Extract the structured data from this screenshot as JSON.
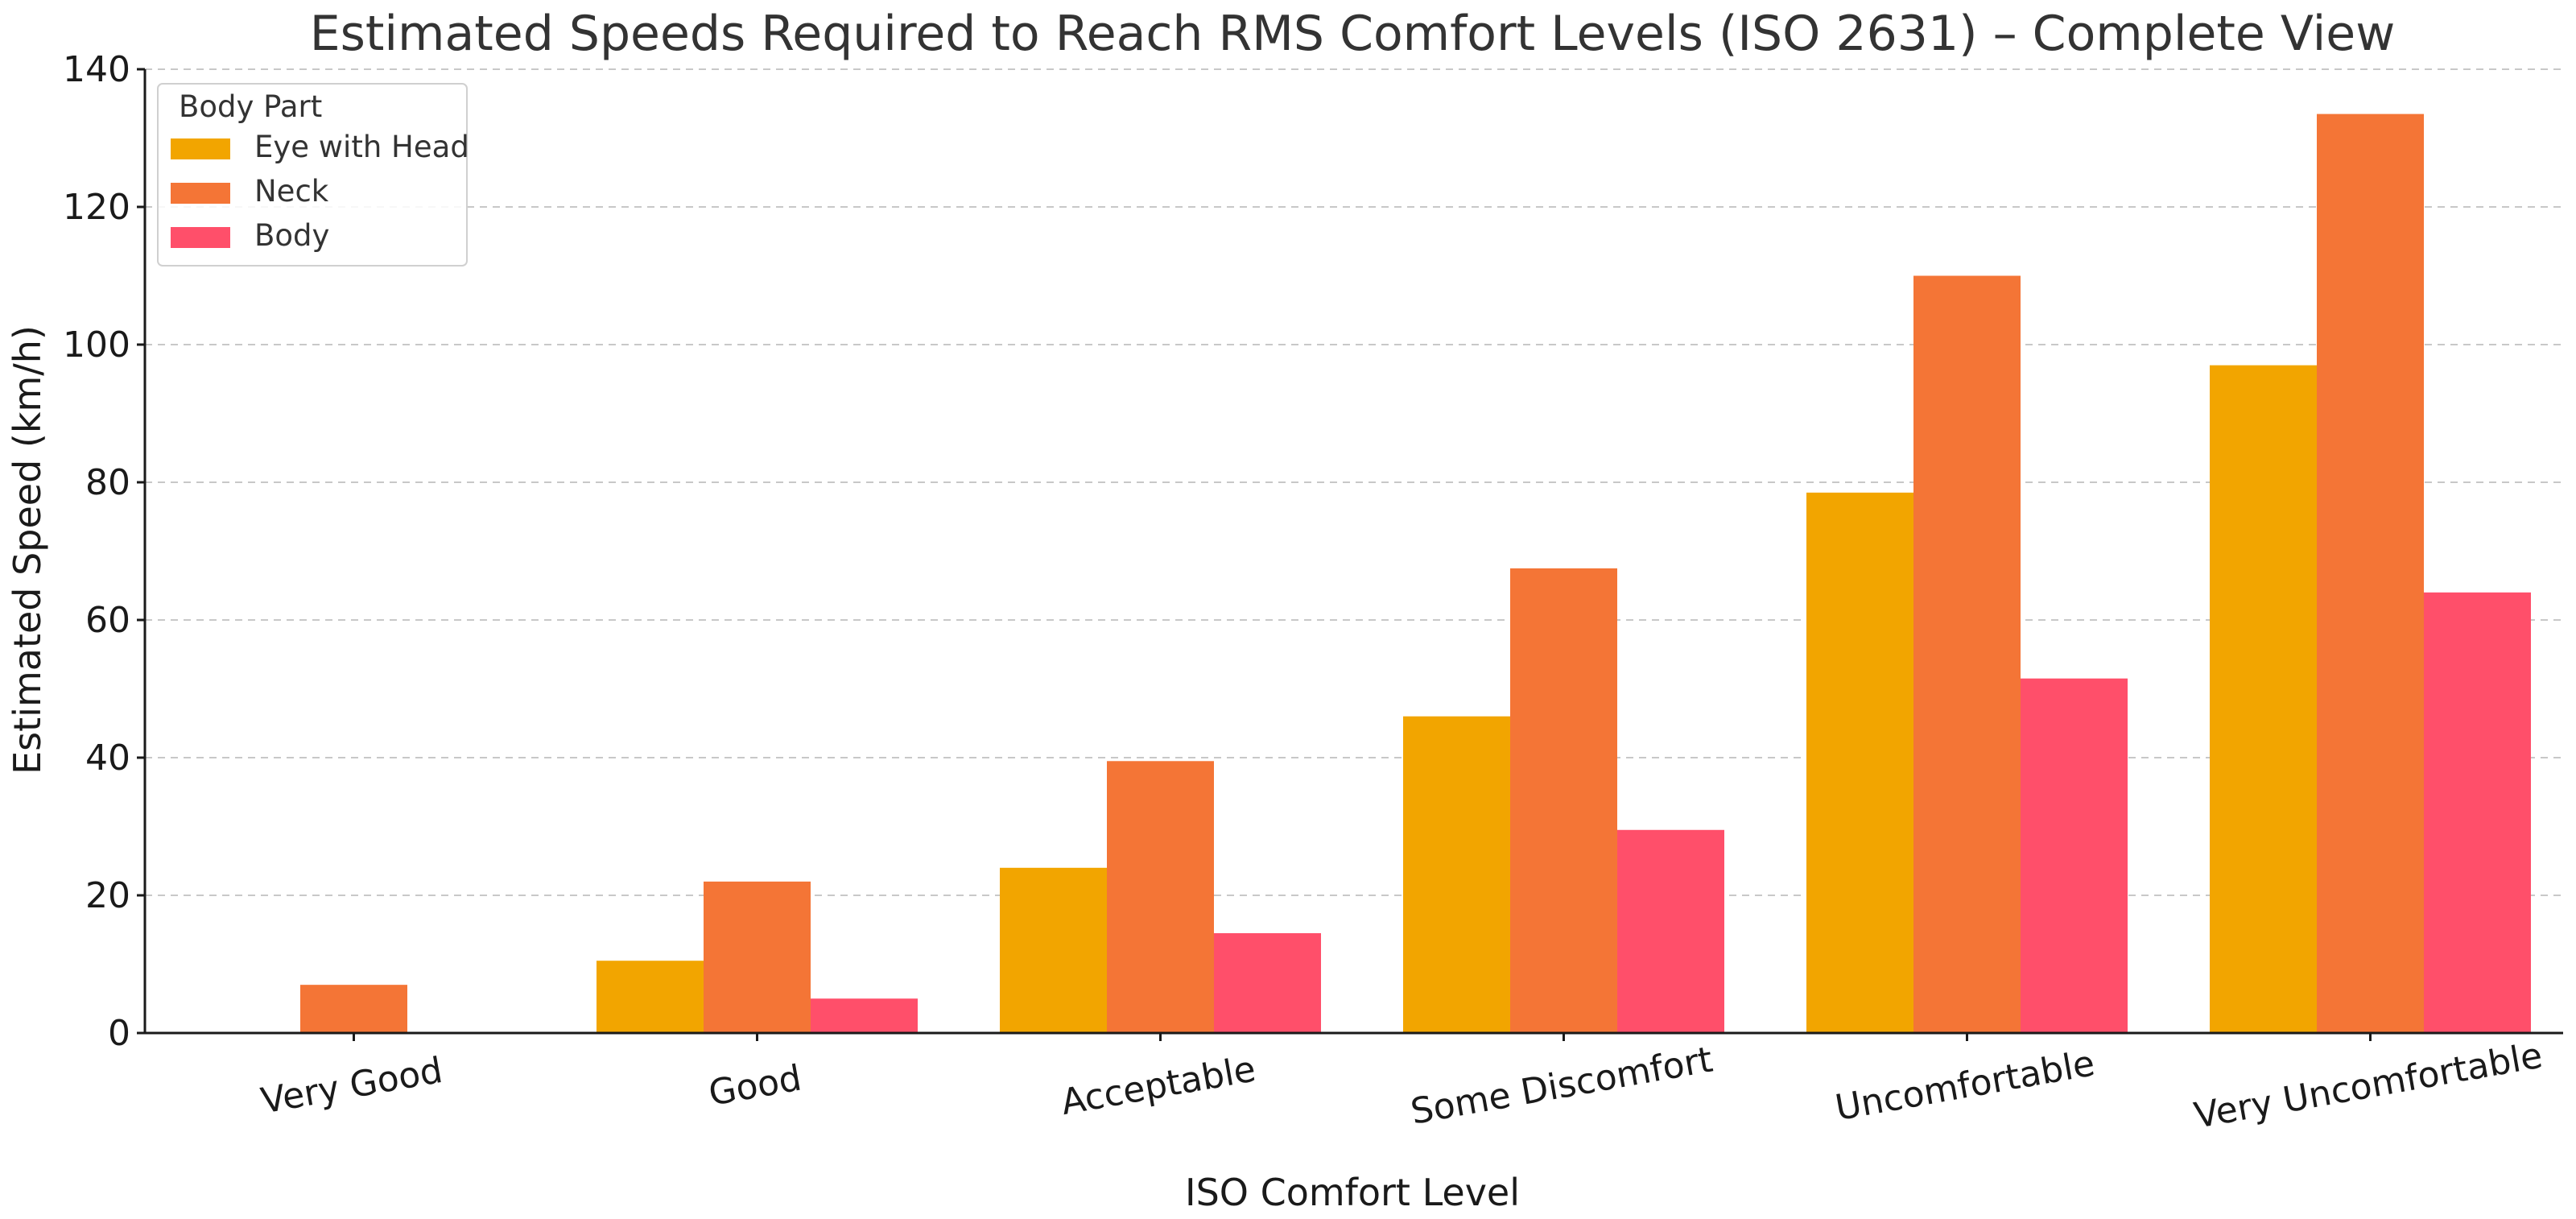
{
  "chart_data": {
    "type": "bar",
    "title": "Estimated Speeds Required to Reach RMS Comfort Levels (ISO 2631) – Complete View",
    "xlabel": "ISO Comfort Level",
    "ylabel": "Estimated Speed (km/h)",
    "ylim": [
      0,
      140
    ],
    "yticks": [
      0,
      20,
      40,
      60,
      80,
      100,
      120,
      140
    ],
    "grid": true,
    "categories": [
      "Very Good",
      "Good",
      "Acceptable",
      "Some Discomfort",
      "Uncomfortable",
      "Very Uncomfortable"
    ],
    "legend": {
      "title": "Body Part",
      "placement": "top-left"
    },
    "series": [
      {
        "name": "Eye with Head",
        "color": "#F2A500",
        "values": [
          0,
          10.5,
          24,
          46,
          78.5,
          97
        ]
      },
      {
        "name": "Neck",
        "color": "#F47536",
        "values": [
          7,
          22,
          39.5,
          67.5,
          110,
          133.5
        ]
      },
      {
        "name": "Body",
        "color": "#FF4F6A",
        "values": [
          0,
          5,
          14.5,
          29.5,
          51.5,
          64
        ]
      }
    ]
  }
}
